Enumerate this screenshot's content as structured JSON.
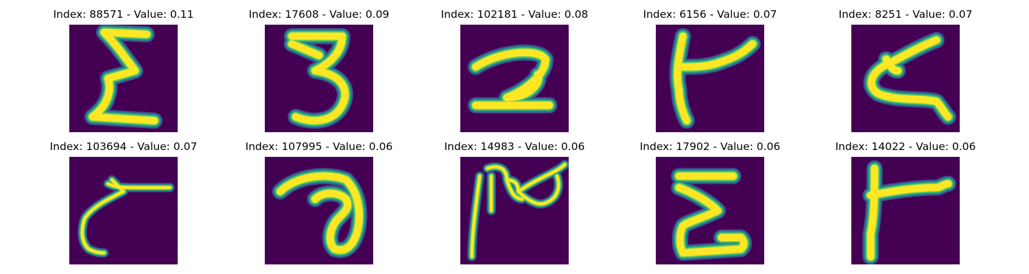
{
  "colors": {
    "background": "#440154",
    "stroke_core": "#fde725",
    "stroke_mid": "#5ec962",
    "stroke_edge": "#21918c",
    "stroke_halo": "#3b528b"
  },
  "panels": [
    {
      "title": "Index: 88571 - Value: 0.11",
      "glyph": "E-like stroke"
    },
    {
      "title": "Index: 17608 - Value: 0.09",
      "glyph": "3-like stroke"
    },
    {
      "title": "Index: 102181 - Value: 0.08",
      "glyph": "2-like stroke"
    },
    {
      "title": "Index: 6156 - Value: 0.07",
      "glyph": "t-like stroke"
    },
    {
      "title": "Index: 8251 - Value: 0.07",
      "glyph": "z-like stroke"
    },
    {
      "title": "Index: 103694 - Value: 0.07",
      "glyph": "r-like stroke"
    },
    {
      "title": "Index: 107995 - Value: 0.06",
      "glyph": "a-like stroke"
    },
    {
      "title": "Index: 14983 - Value: 0.06",
      "glyph": "n-like stroke"
    },
    {
      "title": "Index: 17902 - Value: 0.06",
      "glyph": "E-like stroke"
    },
    {
      "title": "Index: 14022 - Value: 0.06",
      "glyph": "T-like stroke"
    }
  ]
}
